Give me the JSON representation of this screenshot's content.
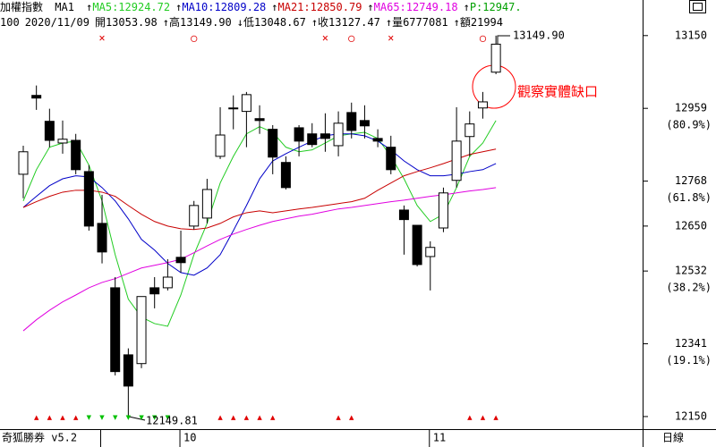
{
  "chart_data": {
    "type": "candlestick",
    "title": "加權指數",
    "indicator": "MA1",
    "legend_marker": "↑",
    "extra_legend": {
      "text": "P:12947.",
      "color": "#00a000"
    },
    "quote_line": [
      "100",
      "2020/11/09",
      "開13053.98",
      "↑高13149.90",
      "↓低13048.67",
      "↑收13127.47",
      "↑量6777081",
      "↑額21994"
    ],
    "footer": "奇狐勝券 v5.2",
    "period": "日線",
    "categories": [
      null,
      null,
      null,
      null,
      null,
      null,
      null,
      null,
      null,
      null,
      null,
      null,
      "10",
      null,
      null,
      null,
      null,
      null,
      null,
      null,
      null,
      null,
      null,
      null,
      null,
      null,
      null,
      null,
      null,
      null,
      null,
      "11",
      null,
      null,
      null,
      null,
      null
    ],
    "open": [
      12786,
      12993,
      12925,
      12868,
      12875,
      12793,
      12657,
      12488,
      12312,
      12289,
      12488,
      12488,
      12568,
      12650,
      12671,
      12833,
      12960,
      12951,
      12932,
      12904,
      12817,
      12908,
      12892,
      12892,
      12861,
      12948,
      12927,
      12880,
      12857,
      12692,
      12652,
      12570,
      12645,
      12770,
      12885,
      12960,
      13053.98
    ],
    "high": [
      12861,
      13019,
      12958,
      12927,
      12892,
      12810,
      12732,
      12516,
      12329,
      12465,
      12516,
      12563,
      12638,
      12716,
      12774,
      12962,
      12993,
      13002,
      12967,
      12915,
      12833,
      12915,
      12920,
      12946,
      12951,
      12974,
      12967,
      12904,
      12887,
      12704,
      12652,
      12610,
      12751,
      12962,
      12951,
      13002,
      13149.9
    ],
    "low": [
      12723,
      12955,
      12857,
      12840,
      12786,
      12638,
      12552,
      12258,
      12149.81,
      12277,
      12434,
      12481,
      12528,
      12641,
      12657,
      12826,
      12904,
      12857,
      12892,
      12786,
      12746,
      12833,
      12857,
      12845,
      12833,
      12880,
      12880,
      12857,
      12786,
      12575,
      12544,
      12481,
      12634,
      12751,
      12833,
      12932,
      13048.67
    ],
    "close": [
      12845,
      12986,
      12875,
      12878,
      12798,
      12650,
      12582,
      12268,
      12230,
      12465,
      12472,
      12516,
      12554,
      12704,
      12746,
      12889,
      12958,
      12995,
      12927,
      12831,
      12751,
      12873,
      12864,
      12880,
      12920,
      12901,
      12913,
      12873,
      12798,
      12667,
      12549,
      12594,
      12737,
      12873,
      12918,
      12976,
      13127.47
    ],
    "series": [
      {
        "name": "MA5:12924.72",
        "color": "#22cc22",
        "values": [
          12716,
          12798,
          12857,
          12868,
          12873,
          12810,
          12716,
          12575,
          12458,
          12411,
          12394,
          12387,
          12469,
          12575,
          12657,
          12763,
          12833,
          12892,
          12911,
          12896,
          12857,
          12845,
          12850,
          12868,
          12887,
          12892,
          12896,
          12880,
          12833,
          12774,
          12704,
          12662,
          12681,
          12751,
          12833,
          12868,
          12927
        ]
      },
      {
        "name": "MA10:12809.28",
        "color": "#0000c8",
        "values": [
          12699,
          12728,
          12756,
          12774,
          12782,
          12779,
          12751,
          12716,
          12669,
          12615,
          12587,
          12552,
          12528,
          12521,
          12540,
          12575,
          12638,
          12704,
          12774,
          12821,
          12840,
          12857,
          12873,
          12887,
          12892,
          12892,
          12887,
          12873,
          12850,
          12821,
          12798,
          12782,
          12782,
          12786,
          12793,
          12798,
          12814
        ]
      },
      {
        "name": "MA21:12850.79",
        "color": "#c80000",
        "values": [
          12699,
          12714,
          12728,
          12739,
          12744,
          12744,
          12739,
          12728,
          12704,
          12681,
          12662,
          12650,
          12643,
          12641,
          12645,
          12657,
          12674,
          12685,
          12690,
          12685,
          12690,
          12695,
          12699,
          12704,
          12709,
          12714,
          12723,
          12744,
          12763,
          12782,
          12793,
          12803,
          12814,
          12826,
          12838,
          12845,
          12852
        ]
      },
      {
        "name": "MA65:12749.18",
        "color": "#e000e0",
        "values": [
          12375,
          12404,
          12429,
          12451,
          12469,
          12488,
          12502,
          12512,
          12526,
          12540,
          12547,
          12554,
          12563,
          12580,
          12598,
          12615,
          12629,
          12641,
          12652,
          12662,
          12669,
          12676,
          12681,
          12688,
          12695,
          12699,
          12704,
          12709,
          12714,
          12718,
          12723,
          12728,
          12732,
          12737,
          12742,
          12746,
          12751
        ]
      }
    ],
    "ylim": [
      12117,
      13173
    ],
    "yticks": [
      13150,
      12959,
      12768,
      12650,
      12532,
      12341,
      12150
    ],
    "ytick_notes": [
      null,
      "(80.9%)",
      "(61.8%)",
      null,
      "(38.2%)",
      "(19.1%)",
      null
    ],
    "top_markers": [
      null,
      null,
      null,
      null,
      null,
      null,
      "×",
      null,
      null,
      null,
      null,
      null,
      null,
      "○",
      null,
      null,
      null,
      null,
      null,
      null,
      null,
      null,
      null,
      "×",
      null,
      "○",
      null,
      null,
      "×",
      null,
      null,
      null,
      null,
      null,
      null,
      "○",
      null
    ],
    "top_marker_color": "#e00000",
    "bottom_markers": [
      null,
      "▲",
      "▲",
      "▲",
      "▲",
      "▼",
      "▼",
      "▼",
      "▼",
      "▼",
      "▼",
      "▼",
      null,
      null,
      null,
      "▲",
      "▲",
      "▲",
      "▲",
      "▲",
      null,
      null,
      null,
      null,
      "▲",
      "▲",
      null,
      null,
      null,
      null,
      null,
      null,
      null,
      null,
      "▲",
      "▲",
      "▲"
    ],
    "bottom_marker_colors": {
      "▲": "#e00000",
      "▼": "#00c000"
    },
    "annotations": [
      {
        "text": "13149.90",
        "color": "#000000"
      },
      {
        "text": "12149.81",
        "color": "#000000"
      },
      {
        "text": "觀察實體缺口",
        "color": "#ff0000"
      }
    ]
  }
}
